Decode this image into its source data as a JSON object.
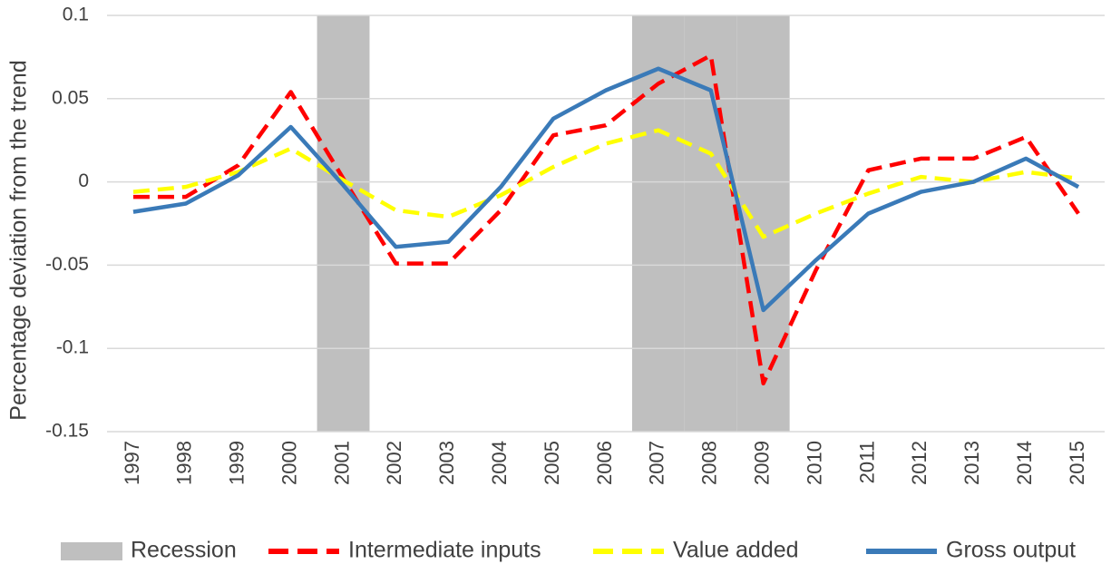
{
  "chart_data": {
    "type": "line",
    "y_label": "Percentage deviation from the trend",
    "categories": [
      "1997",
      "1998",
      "1999",
      "2000",
      "2001",
      "2002",
      "2003",
      "2004",
      "2005",
      "2006",
      "2007",
      "2008",
      "2009",
      "2010",
      "2011",
      "2012",
      "2013",
      "2014",
      "2015"
    ],
    "ylim": [
      -0.15,
      0.1
    ],
    "yticks": [
      0.1,
      0.05,
      0,
      -0.05,
      -0.1,
      -0.15
    ],
    "grid": true,
    "legend": "bottom",
    "series": [
      {
        "name": "Recession",
        "type": "bar",
        "color": "#bfbfbf",
        "values": [
          null,
          null,
          null,
          null,
          0.1,
          null,
          null,
          null,
          null,
          null,
          0.1,
          0.1,
          0.1,
          null,
          null,
          null,
          null,
          null,
          null
        ]
      },
      {
        "name": "Intermediate inputs",
        "color": "#ff0000",
        "dashed": true,
        "values": [
          -0.009,
          -0.009,
          0.01,
          0.054,
          0.002,
          -0.049,
          -0.049,
          -0.017,
          0.028,
          0.034,
          0.059,
          0.076,
          -0.121,
          -0.053,
          0.007,
          0.014,
          0.014,
          0.027,
          -0.019
        ]
      },
      {
        "name": "Value added",
        "color": "#ffff00",
        "dashed": true,
        "values": [
          -0.006,
          -0.003,
          0.006,
          0.02,
          0.001,
          -0.017,
          -0.021,
          -0.008,
          0.009,
          0.023,
          0.031,
          0.017,
          -0.033,
          -0.019,
          -0.007,
          0.003,
          0,
          0.006,
          0.002
        ]
      },
      {
        "name": "Gross output",
        "color": "#3a7ab8",
        "values": [
          -0.018,
          -0.013,
          0.004,
          0.033,
          -0.002,
          -0.039,
          -0.036,
          -0.003,
          0.038,
          0.055,
          0.068,
          0.055,
          -0.077,
          -0.047,
          -0.019,
          -0.006,
          0,
          0.014,
          -0.003
        ]
      }
    ]
  }
}
